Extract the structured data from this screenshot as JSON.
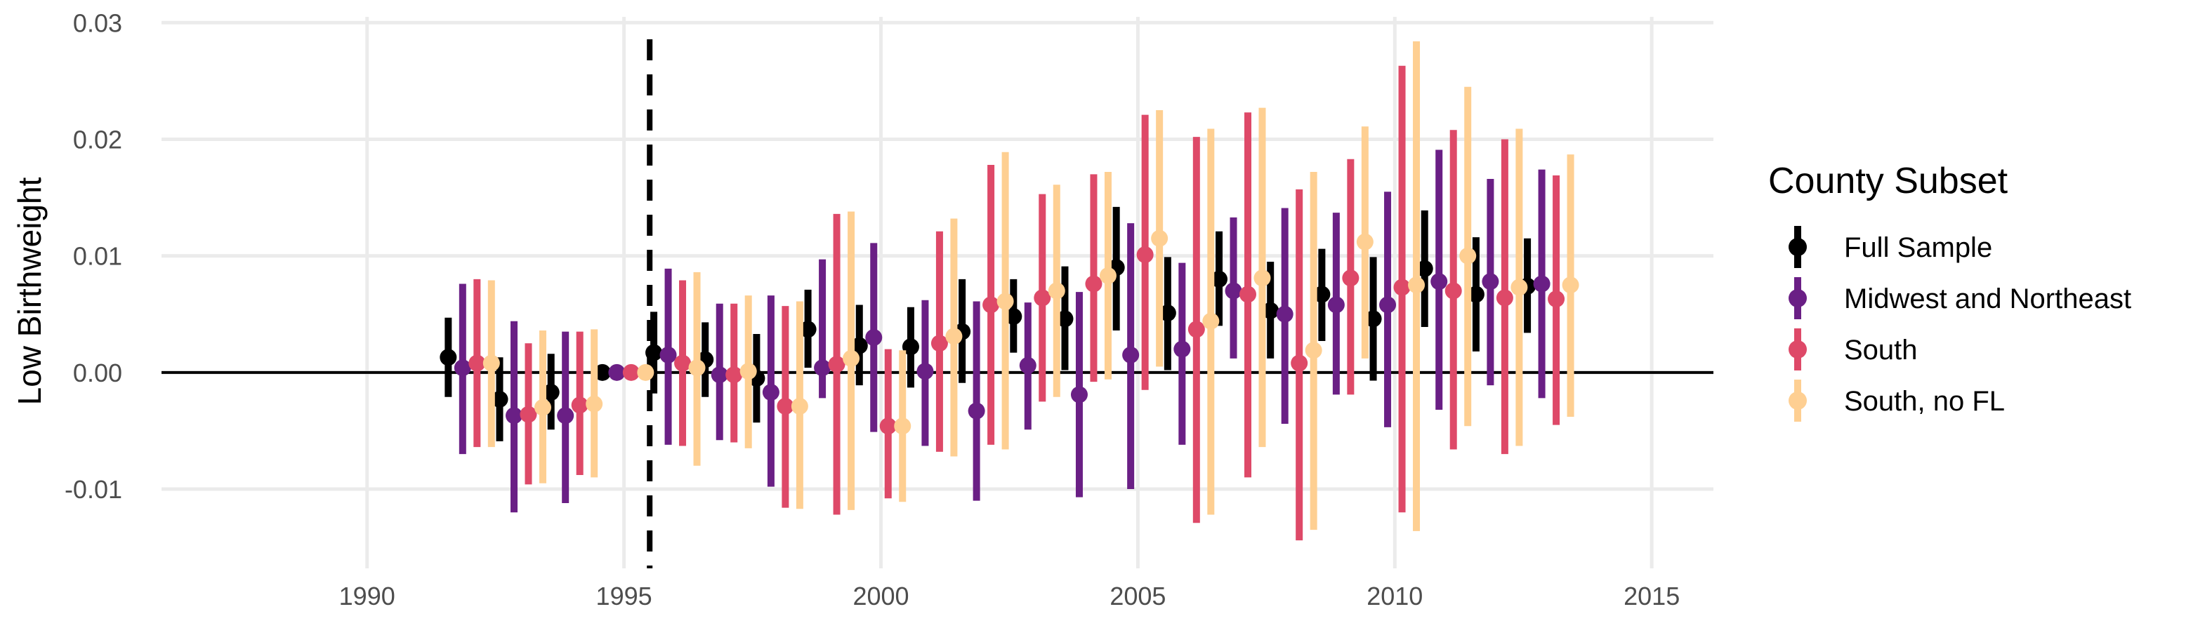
{
  "chart_data": {
    "type": "scatter",
    "subtype": "point-range event study",
    "xlabel": "",
    "ylabel": "Low Birthweight",
    "xlim": [
      1987.7,
      1991.3
    ],
    "xlim_note": "unused",
    "x_range": [
      1986.0,
      2016.2
    ],
    "ylim": [
      -0.0168,
      0.0305
    ],
    "x_ticks": [
      1990,
      1995,
      2000,
      2005,
      2010,
      2015
    ],
    "y_ticks": [
      -0.01,
      0.0,
      0.01,
      0.02,
      0.03
    ],
    "y_tick_labels": [
      "-0.01",
      "0.00",
      "0.01",
      "0.02",
      "0.03"
    ],
    "grid": true,
    "zero_line": 0.0,
    "event_line_x": 1995.5,
    "event_line_style": "dashed",
    "legend": {
      "title": "County Subset",
      "position": "right"
    },
    "series": [
      {
        "name": "Full Sample",
        "color": "#000000",
        "x": [
          1992,
          1993,
          1994,
          1995,
          1996,
          1997,
          1998,
          1999,
          2000,
          2001,
          2002,
          2003,
          2004,
          2005,
          2006,
          2007,
          2008,
          2009,
          2010,
          2011,
          2012,
          2013
        ],
        "y": [
          0.0013,
          -0.0023,
          -0.0017,
          0.0,
          0.0017,
          0.0011,
          -0.0005,
          0.0037,
          0.0023,
          0.0022,
          0.0035,
          0.0048,
          0.0046,
          0.009,
          0.0051,
          0.008,
          0.0053,
          0.0067,
          0.0046,
          0.0089,
          0.0067,
          0.0074
        ],
        "low": [
          -0.0021,
          -0.0059,
          -0.0049,
          0.0,
          -0.0018,
          -0.0021,
          -0.0043,
          0.0004,
          -0.0011,
          -0.0013,
          -0.0009,
          0.0017,
          0.0002,
          0.0036,
          0.0002,
          0.004,
          0.0012,
          0.0027,
          -0.0007,
          0.0039,
          0.0018,
          0.0034
        ],
        "high": [
          0.0047,
          0.0013,
          0.0016,
          0.0,
          0.0052,
          0.0043,
          0.0033,
          0.0071,
          0.0058,
          0.0056,
          0.008,
          0.008,
          0.0091,
          0.0142,
          0.0099,
          0.0121,
          0.0095,
          0.0106,
          0.0099,
          0.0139,
          0.0116,
          0.0115
        ]
      },
      {
        "name": "Midwest and Northeast",
        "color": "#6a1f85",
        "x": [
          1992,
          1993,
          1994,
          1995,
          1996,
          1997,
          1998,
          1999,
          2000,
          2001,
          2002,
          2003,
          2004,
          2005,
          2006,
          2007,
          2008,
          2009,
          2010,
          2011,
          2012,
          2013
        ],
        "y": [
          0.0004,
          -0.0037,
          -0.0037,
          0.0,
          0.0015,
          -0.0002,
          -0.0017,
          0.0004,
          0.003,
          0.0001,
          -0.0033,
          0.0006,
          -0.0019,
          0.0015,
          0.002,
          0.007,
          0.005,
          0.0058,
          0.0058,
          0.0078,
          0.0078,
          0.0076
        ],
        "low": [
          -0.007,
          -0.012,
          -0.0112,
          0.0,
          -0.0062,
          -0.0058,
          -0.0098,
          -0.0022,
          -0.0051,
          -0.0063,
          -0.011,
          -0.0049,
          -0.0107,
          -0.01,
          -0.0062,
          0.0012,
          -0.0044,
          -0.0019,
          -0.0047,
          -0.0032,
          -0.0011,
          -0.0022
        ],
        "high": [
          0.0076,
          0.0044,
          0.0035,
          0.0,
          0.0089,
          0.0059,
          0.0066,
          0.0097,
          0.0111,
          0.0062,
          0.0061,
          0.006,
          0.0069,
          0.0128,
          0.0094,
          0.0133,
          0.0141,
          0.0137,
          0.0155,
          0.0191,
          0.0166,
          0.0174
        ]
      },
      {
        "name": "South",
        "color": "#de4968",
        "x": [
          1992,
          1993,
          1994,
          1995,
          1996,
          1997,
          1998,
          1999,
          2000,
          2001,
          2002,
          2003,
          2004,
          2005,
          2006,
          2007,
          2008,
          2009,
          2010,
          2011,
          2012,
          2013
        ],
        "y": [
          0.0008,
          -0.0036,
          -0.0028,
          0.0,
          0.0008,
          -0.0002,
          -0.0029,
          0.0007,
          -0.0046,
          0.0025,
          0.0058,
          0.0064,
          0.0076,
          0.0101,
          0.0037,
          0.0067,
          0.0008,
          0.0081,
          0.0073,
          0.007,
          0.0064,
          0.0063
        ],
        "low": [
          -0.0064,
          -0.0096,
          -0.0088,
          0.0,
          -0.0063,
          -0.006,
          -0.0116,
          -0.0122,
          -0.0108,
          -0.0068,
          -0.0062,
          -0.0025,
          -0.0008,
          -0.0015,
          -0.0129,
          -0.009,
          -0.0144,
          -0.0019,
          -0.012,
          -0.0066,
          -0.007,
          -0.0045
        ],
        "high": [
          0.008,
          0.0025,
          0.0035,
          0.0,
          0.0079,
          0.0059,
          0.0057,
          0.0136,
          0.002,
          0.0121,
          0.0178,
          0.0153,
          0.017,
          0.0221,
          0.0202,
          0.0223,
          0.0157,
          0.0183,
          0.0263,
          0.0208,
          0.02,
          0.0169
        ]
      },
      {
        "name": "South, no FL",
        "color": "#fecf92",
        "x": [
          1992,
          1993,
          1994,
          1995,
          1996,
          1997,
          1998,
          1999,
          2000,
          2001,
          2002,
          2003,
          2004,
          2005,
          2006,
          2007,
          2008,
          2009,
          2010,
          2011,
          2012,
          2013
        ],
        "y": [
          0.0008,
          -0.003,
          -0.0027,
          0.0,
          0.0004,
          0.0001,
          -0.0029,
          0.0012,
          -0.0046,
          0.0031,
          0.0061,
          0.007,
          0.0083,
          0.0115,
          0.0044,
          0.0081,
          0.0019,
          0.0112,
          0.0075,
          0.01,
          0.0073,
          0.0075
        ],
        "low": [
          -0.0064,
          -0.0095,
          -0.009,
          0.0,
          -0.008,
          -0.0065,
          -0.0117,
          -0.0118,
          -0.0111,
          -0.0072,
          -0.0066,
          -0.0021,
          -0.0006,
          0.0005,
          -0.0122,
          -0.0064,
          -0.0135,
          0.0012,
          -0.0136,
          -0.0046,
          -0.0063,
          -0.0038
        ],
        "high": [
          0.0079,
          0.0036,
          0.0037,
          0.0,
          0.0086,
          0.0066,
          0.0061,
          0.0138,
          0.0019,
          0.0132,
          0.0189,
          0.0161,
          0.0172,
          0.0225,
          0.0209,
          0.0227,
          0.0172,
          0.0211,
          0.0284,
          0.0245,
          0.0209,
          0.0187
        ]
      }
    ]
  }
}
